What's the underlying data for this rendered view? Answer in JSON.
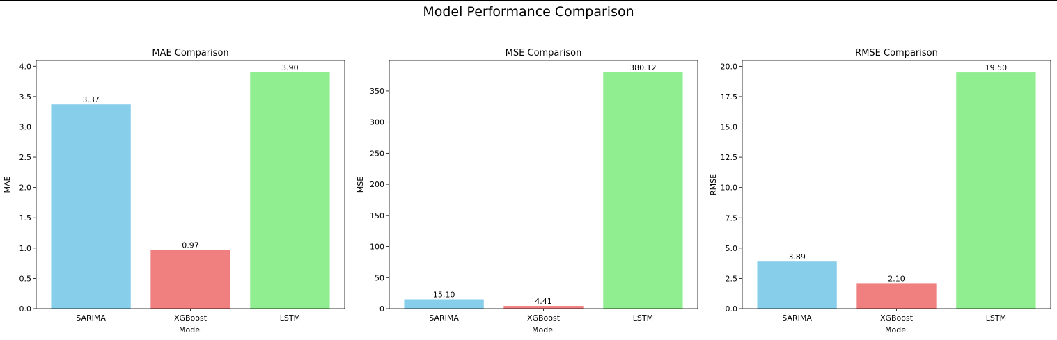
{
  "figure": {
    "title": "Model Performance Comparison"
  },
  "chart_data": [
    {
      "type": "bar",
      "title": "MAE Comparison",
      "xlabel": "Model",
      "ylabel": "MAE",
      "categories": [
        "SARIMA",
        "XGBoost",
        "LSTM"
      ],
      "values": [
        3.37,
        0.97,
        3.9
      ],
      "value_labels": [
        "3.37",
        "0.97",
        "3.90"
      ],
      "colors": [
        "#87ceeb",
        "#f08080",
        "#90ee90"
      ],
      "ylim": [
        0,
        4.095
      ],
      "yticks": [
        0.0,
        0.5,
        1.0,
        1.5,
        2.0,
        2.5,
        3.0,
        3.5,
        4.0
      ],
      "ytick_labels": [
        "0.0",
        "0.5",
        "1.0",
        "1.5",
        "2.0",
        "2.5",
        "3.0",
        "3.5",
        "4.0"
      ],
      "grid": false
    },
    {
      "type": "bar",
      "title": "MSE Comparison",
      "xlabel": "Model",
      "ylabel": "MSE",
      "categories": [
        "SARIMA",
        "XGBoost",
        "LSTM"
      ],
      "values": [
        15.1,
        4.41,
        380.12
      ],
      "value_labels": [
        "15.10",
        "4.41",
        "380.12"
      ],
      "colors": [
        "#87ceeb",
        "#f08080",
        "#90ee90"
      ],
      "ylim": [
        0,
        399.1
      ],
      "yticks": [
        0,
        50,
        100,
        150,
        200,
        250,
        300,
        350
      ],
      "ytick_labels": [
        "0",
        "50",
        "100",
        "150",
        "200",
        "250",
        "300",
        "350"
      ],
      "grid": false
    },
    {
      "type": "bar",
      "title": "RMSE Comparison",
      "xlabel": "Model",
      "ylabel": "RMSE",
      "categories": [
        "SARIMA",
        "XGBoost",
        "LSTM"
      ],
      "values": [
        3.89,
        2.1,
        19.5
      ],
      "value_labels": [
        "3.89",
        "2.10",
        "19.50"
      ],
      "colors": [
        "#87ceeb",
        "#f08080",
        "#90ee90"
      ],
      "ylim": [
        0,
        20.48
      ],
      "yticks": [
        0.0,
        2.5,
        5.0,
        7.5,
        10.0,
        12.5,
        15.0,
        17.5,
        20.0
      ],
      "ytick_labels": [
        "0.0",
        "2.5",
        "5.0",
        "7.5",
        "10.0",
        "12.5",
        "15.0",
        "17.5",
        "20.0"
      ],
      "grid": false
    }
  ]
}
